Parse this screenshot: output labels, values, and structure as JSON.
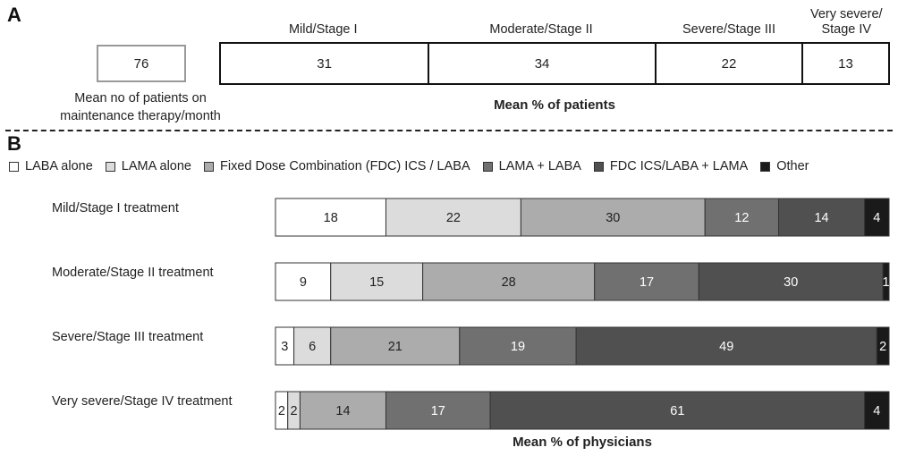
{
  "panel_a": {
    "label": "A",
    "patients_value": "76",
    "patients_label_line1": "Mean no of patients on",
    "patients_label_line2": "maintenance therapy/month",
    "axis_title": "Mean % of patients"
  },
  "panel_b": {
    "label": "B",
    "axis_title": "Mean % of physicians"
  },
  "colors": {
    "LABA alone": "#ffffff",
    "LAMA alone": "#dcdcdc",
    "Fixed Dose Combination (FDC) ICS / LABA": "#acacac",
    "LAMA + LABA": "#707070",
    "FDC ICS/LABA + LAMA": "#505050",
    "Other": "#1a1a1a"
  },
  "chart_data": [
    {
      "type": "bar",
      "orientation": "horizontal-stacked",
      "categories": [
        "Mild/Stage I",
        "Moderate/Stage II",
        "Severe/Stage III",
        "Very severe/Stage IV"
      ],
      "values": [
        31,
        34,
        22,
        13
      ],
      "header_lines": [
        [
          "Mild/Stage I"
        ],
        [
          "Moderate/Stage II"
        ],
        [
          "Severe/Stage III"
        ],
        [
          "Very severe/",
          "Stage IV"
        ]
      ],
      "xlabel": "Mean % of patients"
    },
    {
      "type": "bar",
      "orientation": "horizontal-stacked",
      "categories": [
        "Mild/Stage I treatment",
        "Moderate/Stage II treatment",
        "Severe/Stage III treatment",
        "Very severe/Stage IV treatment"
      ],
      "series": [
        {
          "name": "LABA alone",
          "values": [
            18,
            9,
            3,
            2
          ]
        },
        {
          "name": "LAMA alone",
          "values": [
            22,
            15,
            6,
            2
          ]
        },
        {
          "name": "Fixed Dose Combination (FDC) ICS / LABA",
          "values": [
            30,
            28,
            21,
            14
          ]
        },
        {
          "name": "LAMA + LABA",
          "values": [
            12,
            17,
            19,
            17
          ]
        },
        {
          "name": "FDC ICS/LABA + LAMA",
          "values": [
            14,
            30,
            49,
            61
          ]
        },
        {
          "name": "Other",
          "values": [
            4,
            1,
            2,
            4
          ]
        }
      ],
      "xlabel": "Mean % of physicians",
      "legend": "top",
      "xlim": [
        0,
        100
      ]
    }
  ]
}
